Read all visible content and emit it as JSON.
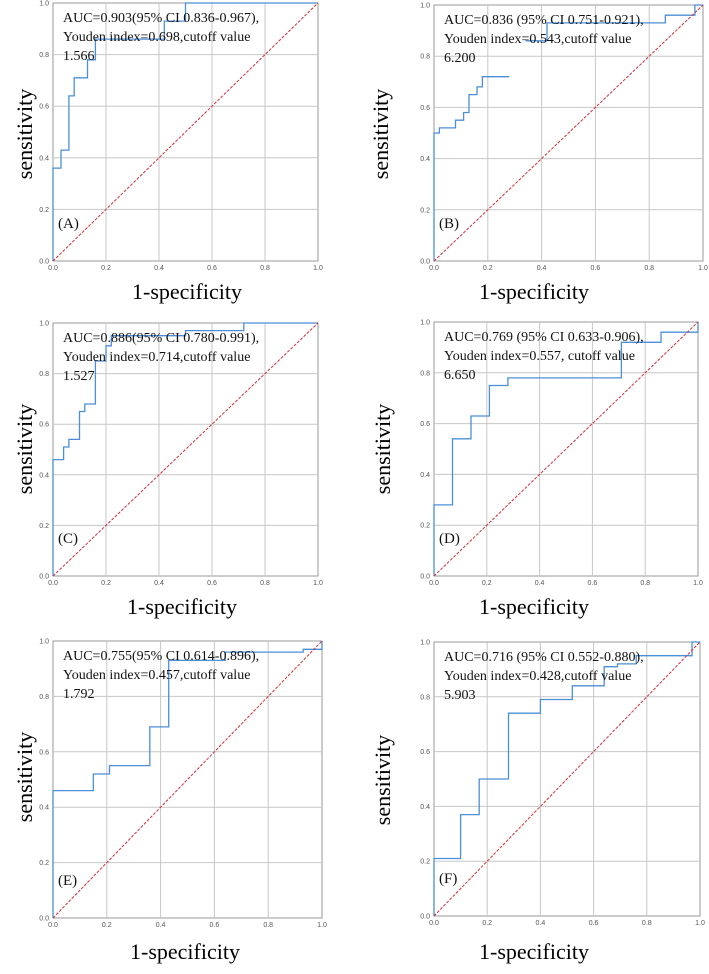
{
  "figure": {
    "colors": {
      "roc": "#4b8fd8",
      "reference": "#d0303a",
      "grid": "#c7c7c7",
      "frame": "#9a9a9a"
    }
  },
  "chart_data": [
    {
      "type": "line",
      "panel_label": "(A)",
      "xlabel": "1-specificity",
      "ylabel": "sensitivity",
      "xlim": [
        0,
        1
      ],
      "ylim": [
        0,
        1
      ],
      "grid": true,
      "ticks": [
        "0.0",
        "0.2",
        "0.4",
        "0.6",
        "0.8",
        "1.0"
      ],
      "annotation": [
        "AUC=0.903(95% CI 0.836-0.967),",
        "Youden index=0.698,cutoff value",
        "1.566"
      ],
      "series": [
        {
          "name": "ROC",
          "points": [
            [
              0,
              0
            ],
            [
              0,
              0.36
            ],
            [
              0.03,
              0.36
            ],
            [
              0.03,
              0.43
            ],
            [
              0.06,
              0.43
            ],
            [
              0.06,
              0.64
            ],
            [
              0.08,
              0.64
            ],
            [
              0.08,
              0.71
            ],
            [
              0.13,
              0.71
            ],
            [
              0.13,
              0.78
            ],
            [
              0.16,
              0.78
            ],
            [
              0.16,
              0.86
            ],
            [
              0.42,
              0.86
            ],
            [
              0.42,
              0.93
            ],
            [
              0.5,
              0.93
            ],
            [
              0.5,
              1.0
            ],
            [
              1,
              1
            ]
          ]
        },
        {
          "name": "Reference",
          "points": [
            [
              0,
              0
            ],
            [
              1,
              1
            ]
          ]
        }
      ]
    },
    {
      "type": "line",
      "panel_label": "(B)",
      "xlabel": "1-specificity",
      "ylabel": "sensitivity",
      "xlim": [
        0,
        1
      ],
      "ylim": [
        0,
        1
      ],
      "grid": true,
      "ticks": [
        "0.0",
        "0.2",
        "0.4",
        "0.6",
        "0.8",
        "1.0"
      ],
      "annotation": [
        "AUC=0.836 (95% CI 0.751-0.921),",
        "Youden index=0.543,cutoff value",
        "6.200"
      ],
      "series": [
        {
          "name": "ROC",
          "points": [
            [
              0,
              0
            ],
            [
              0,
              0.5
            ],
            [
              0.02,
              0.5
            ],
            [
              0.02,
              0.52
            ],
            [
              0.08,
              0.52
            ],
            [
              0.08,
              0.55
            ],
            [
              0.11,
              0.55
            ],
            [
              0.11,
              0.58
            ],
            [
              0.13,
              0.58
            ],
            [
              0.13,
              0.65
            ],
            [
              0.16,
              0.65
            ],
            [
              0.16,
              0.68
            ],
            [
              0.18,
              0.68
            ],
            [
              0.18,
              0.72
            ],
            [
              0.28,
              0.72
            ]
          ]
        },
        {
          "name": "ROC (upper)",
          "points": [
            [
              0.34,
              0.86
            ],
            [
              0.42,
              0.86
            ],
            [
              0.42,
              0.93
            ],
            [
              0.86,
              0.93
            ],
            [
              0.86,
              0.96
            ],
            [
              0.97,
              0.96
            ],
            [
              0.97,
              1.0
            ],
            [
              1,
              1
            ]
          ]
        },
        {
          "name": "Reference",
          "points": [
            [
              0,
              0
            ],
            [
              1,
              1
            ]
          ]
        }
      ]
    },
    {
      "type": "line",
      "panel_label": "(C)",
      "xlabel": "1-specificity",
      "ylabel": "sensitivity",
      "xlim": [
        0,
        1
      ],
      "ylim": [
        0,
        1
      ],
      "grid": true,
      "ticks": [
        "0.0",
        "0.2",
        "0.4",
        "0.6",
        "0.8",
        "1.0"
      ],
      "annotation": [
        "AUC=0.886(95% CI 0.780-0.991),",
        "Youden index=0.714,cutoff value",
        "1.527"
      ],
      "series": [
        {
          "name": "ROC",
          "points": [
            [
              0,
              0
            ],
            [
              0,
              0.46
            ],
            [
              0.04,
              0.46
            ],
            [
              0.04,
              0.51
            ],
            [
              0.06,
              0.51
            ],
            [
              0.06,
              0.54
            ],
            [
              0.1,
              0.54
            ],
            [
              0.1,
              0.65
            ],
            [
              0.12,
              0.65
            ],
            [
              0.12,
              0.68
            ],
            [
              0.16,
              0.68
            ],
            [
              0.16,
              0.85
            ],
            [
              0.2,
              0.85
            ],
            [
              0.2,
              0.91
            ],
            [
              0.22,
              0.91
            ],
            [
              0.22,
              0.95
            ],
            [
              0.5,
              0.95
            ],
            [
              0.5,
              0.97
            ],
            [
              0.72,
              0.97
            ],
            [
              0.72,
              1.0
            ],
            [
              1,
              1
            ]
          ]
        },
        {
          "name": "Reference",
          "points": [
            [
              0,
              0
            ],
            [
              1,
              1
            ]
          ]
        }
      ]
    },
    {
      "type": "line",
      "panel_label": "(D)",
      "xlabel": "1-specificity",
      "ylabel": "sensitivity",
      "xlim": [
        0,
        1
      ],
      "ylim": [
        0,
        1
      ],
      "grid": true,
      "ticks": [
        "0.0",
        "0.2",
        "0.4",
        "0.6",
        "0.8",
        "1.0"
      ],
      "annotation": [
        "AUC=0.769 (95% CI 0.633-0.906),",
        "Youden index=0.557, cutoff value",
        "6.650"
      ],
      "series": [
        {
          "name": "ROC",
          "points": [
            [
              0,
              0
            ],
            [
              0,
              0.28
            ],
            [
              0.07,
              0.28
            ],
            [
              0.07,
              0.54
            ],
            [
              0.14,
              0.54
            ],
            [
              0.14,
              0.63
            ],
            [
              0.21,
              0.63
            ],
            [
              0.21,
              0.75
            ],
            [
              0.28,
              0.75
            ],
            [
              0.28,
              0.78
            ],
            [
              0.71,
              0.78
            ],
            [
              0.71,
              0.92
            ],
            [
              0.86,
              0.92
            ],
            [
              0.86,
              0.96
            ],
            [
              1,
              0.96
            ],
            [
              1,
              1
            ]
          ]
        },
        {
          "name": "Reference",
          "points": [
            [
              0,
              0
            ],
            [
              1,
              1
            ]
          ]
        }
      ]
    },
    {
      "type": "line",
      "panel_label": "(E)",
      "xlabel": "1-specificity",
      "ylabel": "sensitivity",
      "xlim": [
        0,
        1
      ],
      "ylim": [
        0,
        1
      ],
      "grid": true,
      "ticks": [
        "0.0",
        "0.2",
        "0.4",
        "0.6",
        "0.8",
        "1.0"
      ],
      "annotation": [
        "AUC=0.755(95% CI 0.614-0.896),",
        "Youden index=0.457,cutoff value",
        "1.792"
      ],
      "series": [
        {
          "name": "ROC",
          "points": [
            [
              0,
              0
            ],
            [
              0,
              0.46
            ],
            [
              0.15,
              0.46
            ],
            [
              0.15,
              0.52
            ],
            [
              0.21,
              0.52
            ],
            [
              0.21,
              0.55
            ],
            [
              0.36,
              0.55
            ],
            [
              0.36,
              0.69
            ],
            [
              0.43,
              0.69
            ],
            [
              0.43,
              0.93
            ],
            [
              0.64,
              0.93
            ],
            [
              0.64,
              0.96
            ],
            [
              0.93,
              0.96
            ],
            [
              0.93,
              0.97
            ],
            [
              1,
              0.97
            ],
            [
              1,
              1
            ]
          ]
        },
        {
          "name": "Reference",
          "points": [
            [
              0,
              0
            ],
            [
              1,
              1
            ]
          ]
        }
      ]
    },
    {
      "type": "line",
      "panel_label": "(F)",
      "xlabel": "1-specificity",
      "ylabel": "sensitivity",
      "xlim": [
        0,
        1
      ],
      "ylim": [
        0,
        1
      ],
      "grid": true,
      "ticks": [
        "0.0",
        "0.2",
        "0.4",
        "0.6",
        "0.8",
        "1.0"
      ],
      "annotation": [
        "AUC=0.716 (95% CI 0.552-0.880),",
        "Youden index=0.428,cutoff value",
        "5.903"
      ],
      "series": [
        {
          "name": "ROC",
          "points": [
            [
              0,
              0
            ],
            [
              0,
              0.21
            ],
            [
              0.1,
              0.21
            ],
            [
              0.1,
              0.37
            ],
            [
              0.17,
              0.37
            ],
            [
              0.17,
              0.5
            ],
            [
              0.28,
              0.5
            ],
            [
              0.28,
              0.74
            ],
            [
              0.4,
              0.74
            ],
            [
              0.4,
              0.79
            ],
            [
              0.52,
              0.79
            ],
            [
              0.52,
              0.84
            ],
            [
              0.64,
              0.84
            ],
            [
              0.64,
              0.91
            ],
            [
              0.69,
              0.91
            ],
            [
              0.69,
              0.92
            ],
            [
              0.76,
              0.92
            ],
            [
              0.76,
              0.95
            ],
            [
              0.97,
              0.95
            ],
            [
              0.97,
              1.0
            ],
            [
              1,
              1
            ]
          ]
        },
        {
          "name": "Reference",
          "points": [
            [
              0,
              0
            ],
            [
              1,
              1
            ]
          ]
        }
      ]
    }
  ]
}
